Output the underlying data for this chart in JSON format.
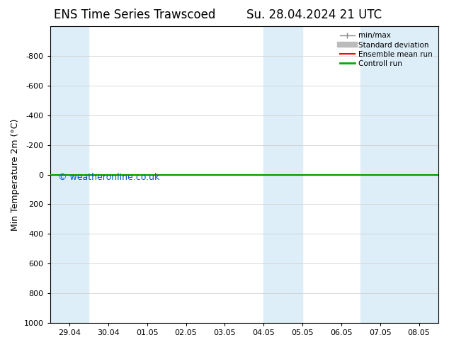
{
  "title_left": "ENS Time Series Trawscoed",
  "title_right": "Su. 28.04.2024 21 UTC",
  "xlabel": "",
  "ylabel": "Min Temperature 2m (°C)",
  "xlim_labels": [
    "29.04",
    "30.04",
    "01.05",
    "02.05",
    "03.05",
    "04.05",
    "05.05",
    "06.05",
    "07.05",
    "08.05"
  ],
  "ylim": [
    -1000,
    1000
  ],
  "yticks": [
    -800,
    -600,
    -400,
    -200,
    0,
    200,
    400,
    600,
    800,
    1000
  ],
  "background_color": "#ffffff",
  "plot_bg_color": "#ffffff",
  "shaded_regions": [
    {
      "xstart": -0.5,
      "xend": 0.5,
      "color": "#ddeef8"
    },
    {
      "xstart": 5.0,
      "xend": 6.0,
      "color": "#ddeef8"
    },
    {
      "xstart": 7.5,
      "xend": 9.5,
      "color": "#ddeef8"
    }
  ],
  "green_line_y": 0,
  "red_line_y": 0,
  "watermark": "© weatheronline.co.uk",
  "watermark_color": "#0055cc",
  "legend_items": [
    {
      "label": "min/max",
      "color": "#888888",
      "lw": 1.0
    },
    {
      "label": "Standard deviation",
      "color": "#bbbbbb",
      "lw": 6
    },
    {
      "label": "Ensemble mean run",
      "color": "#ff0000",
      "lw": 1.5
    },
    {
      "label": "Controll run",
      "color": "#00aa00",
      "lw": 2
    }
  ],
  "title_fontsize": 12,
  "axis_label_fontsize": 9,
  "tick_fontsize": 8
}
